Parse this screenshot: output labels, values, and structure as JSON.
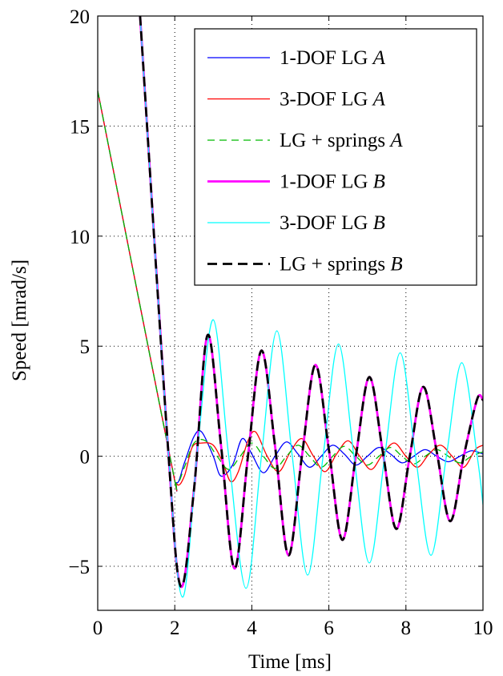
{
  "chart_data": {
    "type": "line",
    "xlabel": "Time [ms]",
    "ylabel": "Speed [mrad/s]",
    "xlim": [
      0,
      10
    ],
    "ylim": [
      -7,
      20
    ],
    "xticks": [
      0,
      2,
      4,
      6,
      8,
      10
    ],
    "yticks": [
      -5,
      0,
      5,
      10,
      15,
      20
    ],
    "ytick_labels": [
      "−5",
      "0",
      "5",
      "10",
      "15",
      "20"
    ],
    "grid": true,
    "legend_position": "top-right",
    "series": [
      {
        "name": "1-DOF LG A",
        "label_main": "1-DOF LG ",
        "label_italic": "A",
        "color": "#0000ff",
        "style": "solid",
        "width": 1.3,
        "x": [
          0,
          1.85,
          2.05,
          2.25,
          2.5,
          2.7,
          3.0,
          3.2,
          3.5,
          3.75,
          4.0,
          4.3,
          4.6,
          4.9,
          5.2,
          5.5,
          5.8,
          6.1,
          6.4,
          6.7,
          7.0,
          7.3,
          7.6,
          7.9,
          8.2,
          8.5,
          8.8,
          9.1,
          9.4,
          9.7,
          10.0
        ],
        "y": [
          16.6,
          0.2,
          -1.2,
          -0.3,
          0.9,
          1.1,
          0.0,
          -0.9,
          -0.4,
          0.8,
          0.1,
          -0.75,
          0.0,
          0.65,
          0.1,
          -0.5,
          0.0,
          0.5,
          0.1,
          -0.4,
          0.0,
          0.4,
          0.1,
          -0.3,
          0.0,
          0.3,
          0.0,
          -0.25,
          0.0,
          0.25,
          0.1
        ]
      },
      {
        "name": "3-DOF LG A",
        "label_main": "3-DOF LG ",
        "label_italic": "A",
        "color": "#ff0000",
        "style": "solid",
        "width": 1.3,
        "x": [
          0,
          1.85,
          2.05,
          2.25,
          2.45,
          2.7,
          3.0,
          3.25,
          3.45,
          3.65,
          3.9,
          4.1,
          4.4,
          4.7,
          5.0,
          5.3,
          5.6,
          5.9,
          6.2,
          6.5,
          6.8,
          7.1,
          7.4,
          7.7,
          8.0,
          8.3,
          8.6,
          8.9,
          9.2,
          9.5,
          9.8,
          10.0
        ],
        "y": [
          16.6,
          0.2,
          -1.25,
          -0.9,
          0.4,
          0.6,
          0.5,
          -0.3,
          -1.15,
          -0.7,
          0.7,
          1.1,
          0.0,
          -0.7,
          0.2,
          0.8,
          0.0,
          -0.7,
          0.1,
          0.7,
          0.0,
          -0.6,
          0.1,
          0.6,
          0.0,
          -0.5,
          0.1,
          0.5,
          0.0,
          -0.5,
          0.3,
          0.5
        ]
      },
      {
        "name": "LG + springs A",
        "label_main": "LG + springs ",
        "label_italic": "A",
        "color": "#00bb00",
        "style": "dashed",
        "width": 1.3,
        "x": [
          0,
          1.85,
          2.05,
          2.25,
          2.5,
          2.8,
          3.1,
          3.4,
          3.7,
          4.0,
          4.3,
          4.6,
          4.9,
          5.2,
          5.5,
          5.8,
          6.1,
          6.4,
          6.7,
          7.0,
          7.3,
          7.6,
          7.9,
          8.2,
          8.5,
          8.8,
          9.1,
          9.4,
          9.7,
          10.0
        ],
        "y": [
          16.6,
          0.2,
          -1.2,
          -0.5,
          0.6,
          0.7,
          0.0,
          -0.6,
          0.0,
          0.6,
          0.0,
          -0.55,
          0.0,
          0.5,
          0.0,
          -0.5,
          0.0,
          0.45,
          0.0,
          -0.4,
          0.0,
          0.4,
          0.0,
          -0.35,
          0.0,
          0.3,
          0.0,
          -0.3,
          0.0,
          0.2
        ]
      },
      {
        "name": "1-DOF LG B",
        "label_main": "1-DOF LG ",
        "label_italic": "B",
        "color": "#ff00ff",
        "style": "solid",
        "width": 2.8,
        "x": [
          1.1,
          1.8,
          2.15,
          2.5,
          2.85,
          3.2,
          3.55,
          3.9,
          4.25,
          4.6,
          4.95,
          5.3,
          5.65,
          6.0,
          6.35,
          6.7,
          7.05,
          7.4,
          7.75,
          8.1,
          8.45,
          8.8,
          9.15,
          9.5,
          9.85,
          10.0
        ],
        "y": [
          20.0,
          1.0,
          -5.9,
          -1.5,
          5.5,
          0.5,
          -5.1,
          0.0,
          4.8,
          0.5,
          -4.5,
          0.0,
          4.15,
          0.3,
          -3.8,
          0.0,
          3.6,
          0.2,
          -3.3,
          0.0,
          3.15,
          0.2,
          -2.95,
          0.0,
          2.6,
          2.55
        ]
      },
      {
        "name": "3-DOF LG B",
        "label_main": "3-DOF LG ",
        "label_italic": "B",
        "color": "#00ffff",
        "style": "solid",
        "width": 1.3,
        "x": [
          1.1,
          1.8,
          2.2,
          2.6,
          3.0,
          3.4,
          3.85,
          4.25,
          4.65,
          5.05,
          5.45,
          5.85,
          6.25,
          6.65,
          7.05,
          7.45,
          7.85,
          8.25,
          8.65,
          9.05,
          9.45,
          9.85,
          10.0
        ],
        "y": [
          20.0,
          1.0,
          -6.4,
          0.5,
          6.2,
          0.0,
          -6.0,
          0.0,
          5.7,
          0.0,
          -5.4,
          0.0,
          5.1,
          0.0,
          -4.85,
          0.0,
          4.7,
          0.0,
          -4.5,
          0.0,
          4.25,
          0.0,
          -2.2
        ]
      },
      {
        "name": "LG + springs B",
        "label_main": "LG + springs ",
        "label_italic": "B",
        "color": "#000000",
        "style": "dashed",
        "width": 2.8,
        "x": [
          1.1,
          1.8,
          2.15,
          2.5,
          2.85,
          3.2,
          3.55,
          3.9,
          4.25,
          4.6,
          4.95,
          5.3,
          5.65,
          6.0,
          6.35,
          6.7,
          7.05,
          7.4,
          7.75,
          8.1,
          8.45,
          8.8,
          9.15,
          9.5,
          9.85,
          10.0
        ],
        "y": [
          20.0,
          1.0,
          -5.9,
          -1.5,
          5.5,
          0.5,
          -5.1,
          0.0,
          4.8,
          0.5,
          -4.5,
          0.0,
          4.15,
          0.3,
          -3.8,
          0.0,
          3.6,
          0.2,
          -3.3,
          0.0,
          3.15,
          0.2,
          -2.95,
          0.0,
          2.6,
          2.55
        ]
      }
    ]
  }
}
